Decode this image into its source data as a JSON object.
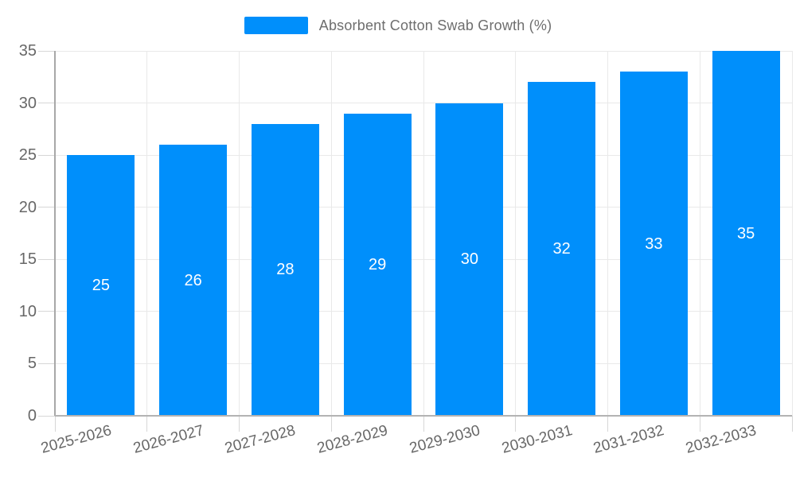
{
  "legend": {
    "label": "Absorbent Cotton Swab Growth (%)"
  },
  "chart_data": {
    "type": "bar",
    "title": "Absorbent Cotton Swab Growth (%)",
    "categories": [
      "2025-2026",
      "2026-2027",
      "2027-2028",
      "2028-2029",
      "2029-2030",
      "2030-2031",
      "2031-2032",
      "2032-2033"
    ],
    "values": [
      25,
      26,
      28,
      29,
      30,
      32,
      33,
      35
    ],
    "xlabel": "",
    "ylabel": "",
    "ylim": [
      0,
      35
    ],
    "yticks": [
      0,
      5,
      10,
      15,
      20,
      25,
      30,
      35
    ],
    "grid": true,
    "legend_position": "top",
    "colors": {
      "bar": "#008FFB",
      "bar_value_label": "#ffffff",
      "axis_text": "#676767",
      "legend_text": "#6e6e6e",
      "gridline": "#e9e9e9",
      "axis_line": "#a8a8a8",
      "zero_line": "#b3b3b3",
      "tick": "#d7d7d7"
    }
  }
}
